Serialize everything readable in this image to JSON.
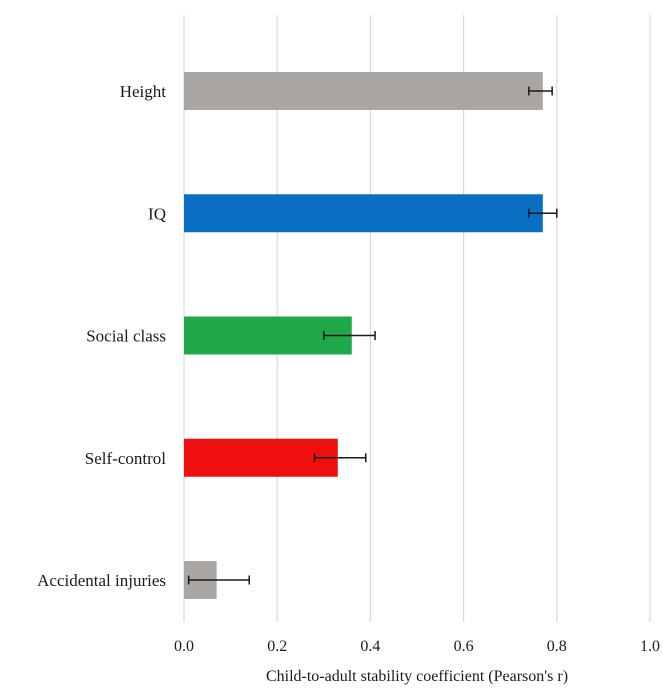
{
  "chart_data": {
    "type": "bar",
    "orientation": "horizontal",
    "title": "",
    "xlabel": "Child-to-adult stability coefficient (Pearson's r)",
    "ylabel": "",
    "xlim": [
      0,
      1.0
    ],
    "xticks": [
      0.0,
      0.2,
      0.4,
      0.6,
      0.8,
      1.0
    ],
    "xtick_labels": [
      "0.0",
      "0.2",
      "0.4",
      "0.6",
      "0.8",
      "1.0"
    ],
    "grid": "vertical",
    "legend": "none",
    "categories": [
      "Height",
      "IQ",
      "Social class",
      "Self-control",
      "Accidental injuries"
    ],
    "values": [
      0.77,
      0.77,
      0.36,
      0.33,
      0.07
    ],
    "error_low": [
      0.74,
      0.74,
      0.3,
      0.28,
      0.01
    ],
    "error_high": [
      0.79,
      0.8,
      0.41,
      0.39,
      0.14
    ],
    "colors": [
      "#a9a6a3",
      "#0a6fc2",
      "#1fa84a",
      "#f00f0f",
      "#a9a6a3"
    ]
  }
}
